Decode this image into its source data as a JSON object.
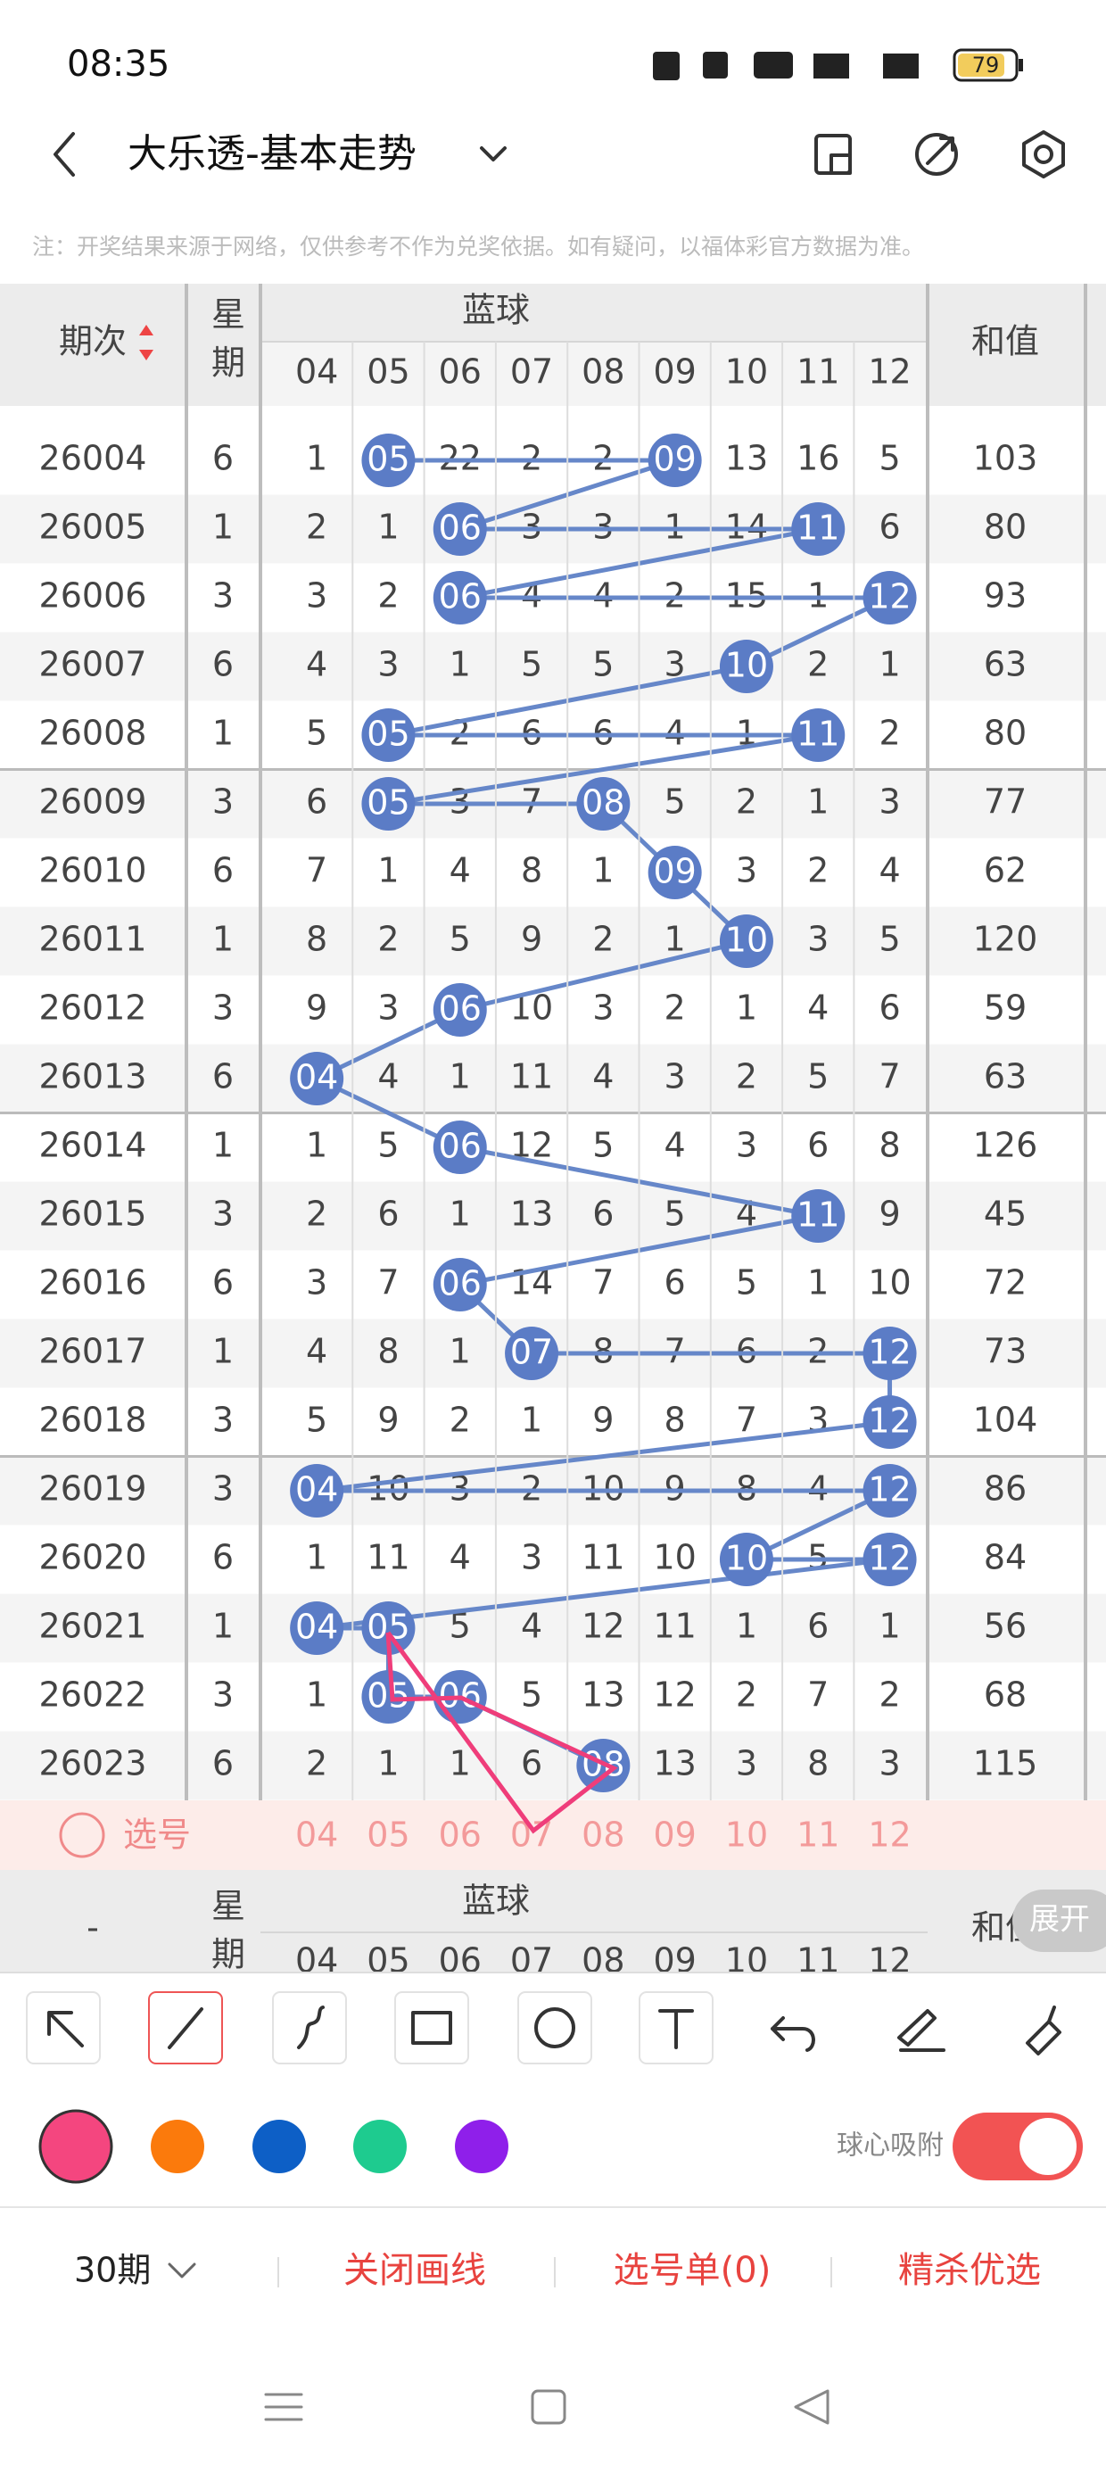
{
  "status_bar": {
    "time": "08:35",
    "battery": "79"
  },
  "header": {
    "title": "大乐透-基本走势"
  },
  "note": "注：开奖结果来源于网络，仅供参考不作为兑奖依据。如有疑问，以福体彩官方数据为准。",
  "table": {
    "headers": {
      "period": "期次",
      "weekday": "星期",
      "blue": "蓝球",
      "sum": "和值",
      "period_footer": "-"
    },
    "columns": [
      "04",
      "05",
      "06",
      "07",
      "08",
      "09",
      "10",
      "11",
      "12"
    ],
    "rows": [
      {
        "period": "26004",
        "weekday": "6",
        "cells": [
          "1",
          "05",
          "22",
          "2",
          "2",
          "09",
          "13",
          "16",
          "5"
        ],
        "sum": "103"
      },
      {
        "period": "26005",
        "weekday": "1",
        "cells": [
          "2",
          "1",
          "06",
          "3",
          "3",
          "1",
          "14",
          "11",
          "6"
        ],
        "sum": "80"
      },
      {
        "period": "26006",
        "weekday": "3",
        "cells": [
          "3",
          "2",
          "06",
          "4",
          "4",
          "2",
          "15",
          "1",
          "12"
        ],
        "sum": "93"
      },
      {
        "period": "26007",
        "weekday": "6",
        "cells": [
          "4",
          "3",
          "1",
          "5",
          "5",
          "3",
          "10",
          "2",
          "1"
        ],
        "sum": "63"
      },
      {
        "period": "26008",
        "weekday": "1",
        "cells": [
          "5",
          "05",
          "2",
          "6",
          "6",
          "4",
          "1",
          "11",
          "2"
        ],
        "sum": "80"
      },
      {
        "period": "26009",
        "weekday": "3",
        "cells": [
          "6",
          "05",
          "3",
          "7",
          "08",
          "5",
          "2",
          "1",
          "3"
        ],
        "sum": "77"
      },
      {
        "period": "26010",
        "weekday": "6",
        "cells": [
          "7",
          "1",
          "4",
          "8",
          "1",
          "09",
          "3",
          "2",
          "4"
        ],
        "sum": "62"
      },
      {
        "period": "26011",
        "weekday": "1",
        "cells": [
          "8",
          "2",
          "5",
          "9",
          "2",
          "1",
          "10",
          "3",
          "5"
        ],
        "sum": "120"
      },
      {
        "period": "26012",
        "weekday": "3",
        "cells": [
          "9",
          "3",
          "06",
          "10",
          "3",
          "2",
          "1",
          "4",
          "6"
        ],
        "sum": "59"
      },
      {
        "period": "26013",
        "weekday": "6",
        "cells": [
          "04",
          "4",
          "1",
          "11",
          "4",
          "3",
          "2",
          "5",
          "7"
        ],
        "sum": "63"
      },
      {
        "period": "26014",
        "weekday": "1",
        "cells": [
          "1",
          "5",
          "06",
          "12",
          "5",
          "4",
          "3",
          "6",
          "8"
        ],
        "sum": "126"
      },
      {
        "period": "26015",
        "weekday": "3",
        "cells": [
          "2",
          "6",
          "1",
          "13",
          "6",
          "5",
          "4",
          "11",
          "9"
        ],
        "sum": "45"
      },
      {
        "period": "26016",
        "weekday": "6",
        "cells": [
          "3",
          "7",
          "06",
          "14",
          "7",
          "6",
          "5",
          "1",
          "10"
        ],
        "sum": "72"
      },
      {
        "period": "26017",
        "weekday": "1",
        "cells": [
          "4",
          "8",
          "1",
          "07",
          "8",
          "7",
          "6",
          "2",
          "12"
        ],
        "sum": "73"
      },
      {
        "period": "26018",
        "weekday": "3",
        "cells": [
          "5",
          "9",
          "2",
          "1",
          "9",
          "8",
          "7",
          "3",
          "12"
        ],
        "sum": "104"
      },
      {
        "period": "26019",
        "weekday": "3",
        "cells": [
          "04",
          "10",
          "3",
          "2",
          "10",
          "9",
          "8",
          "4",
          "12"
        ],
        "sum": "86"
      },
      {
        "period": "26020",
        "weekday": "6",
        "cells": [
          "1",
          "11",
          "4",
          "3",
          "11",
          "10",
          "10",
          "5",
          "12"
        ],
        "sum": "84"
      },
      {
        "period": "26021",
        "weekday": "1",
        "cells": [
          "04",
          "05",
          "5",
          "4",
          "12",
          "11",
          "1",
          "6",
          "1"
        ],
        "sum": "56"
      },
      {
        "period": "26022",
        "weekday": "3",
        "cells": [
          "1",
          "05",
          "06",
          "5",
          "13",
          "12",
          "2",
          "7",
          "2"
        ],
        "sum": "68"
      },
      {
        "period": "26023",
        "weekday": "6",
        "cells": [
          "2",
          "1",
          "1",
          "6",
          "08",
          "13",
          "3",
          "8",
          "3"
        ],
        "sum": "115"
      }
    ],
    "select_label": "选号",
    "expand": "展开"
  },
  "toolbar": {
    "snap_label": "球心吸附"
  },
  "bottom_bar": {
    "period_select": "30期",
    "close_lines": "关闭画线",
    "pick_list": "选号单(0)",
    "featured": "精杀优选"
  }
}
